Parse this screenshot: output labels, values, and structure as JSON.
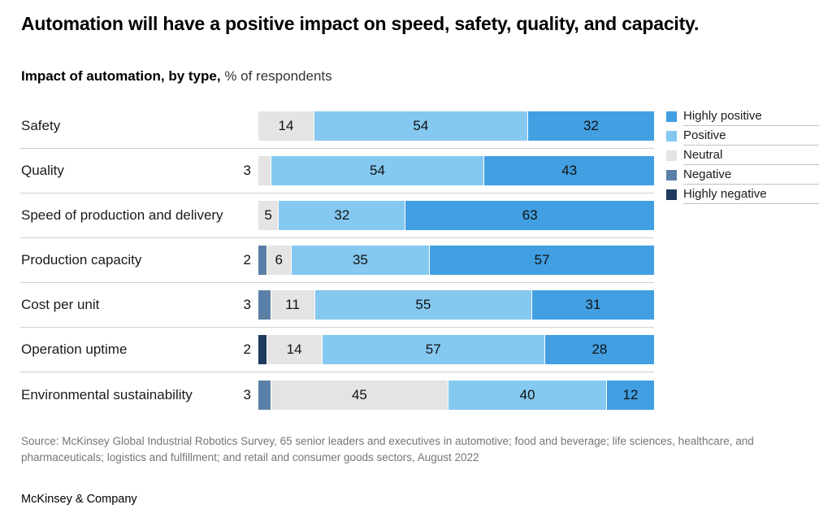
{
  "title": "Automation will have a positive impact on speed, safety, quality, and capacity.",
  "subtitle": {
    "bold": "Impact of automation, by type,",
    "rest": " % of respondents"
  },
  "legend": [
    {
      "key": "highly_positive",
      "label": "Highly positive",
      "color": "#419fe2"
    },
    {
      "key": "positive",
      "label": "Positive",
      "color": "#85c8f0"
    },
    {
      "key": "neutral",
      "label": "Neutral",
      "color": "#e4e4e4"
    },
    {
      "key": "negative",
      "label": "Negative",
      "color": "#5b80a7"
    },
    {
      "key": "highly_negative",
      "label": "Highly negative",
      "color": "#1e3a5e"
    }
  ],
  "chart_data": {
    "type": "bar",
    "orientation": "horizontal",
    "stacked": true,
    "unit": "% of respondents",
    "xlim": [
      0,
      100
    ],
    "grid": false,
    "legend_position": "right",
    "label_outside_threshold": 5,
    "categories": [
      "Safety",
      "Quality",
      "Speed of production and delivery",
      "Production capacity",
      "Cost per unit",
      "Operation uptime",
      "Environmental sustainability"
    ],
    "series": [
      {
        "name": "Highly positive",
        "values": [
          32,
          43,
          63,
          57,
          31,
          28,
          12
        ]
      },
      {
        "name": "Positive",
        "values": [
          54,
          54,
          32,
          35,
          55,
          57,
          40
        ]
      },
      {
        "name": "Neutral",
        "values": [
          14,
          3,
          5,
          6,
          11,
          14,
          45
        ]
      },
      {
        "name": "Negative",
        "values": [
          0,
          0,
          0,
          2,
          3,
          0,
          3
        ]
      },
      {
        "name": "Highly negative",
        "values": [
          0,
          0,
          0,
          0,
          0,
          2,
          0
        ]
      }
    ],
    "rows": [
      {
        "label": "Safety",
        "segments": [
          {
            "key": "neutral",
            "value": 14
          },
          {
            "key": "positive",
            "value": 54
          },
          {
            "key": "highly_positive",
            "value": 32
          }
        ]
      },
      {
        "label": "Quality",
        "segments": [
          {
            "key": "neutral",
            "value": 3
          },
          {
            "key": "positive",
            "value": 54
          },
          {
            "key": "highly_positive",
            "value": 43
          }
        ]
      },
      {
        "label": "Speed of production and delivery",
        "segments": [
          {
            "key": "neutral",
            "value": 5
          },
          {
            "key": "positive",
            "value": 32
          },
          {
            "key": "highly_positive",
            "value": 63
          }
        ]
      },
      {
        "label": "Production capacity",
        "segments": [
          {
            "key": "negative",
            "value": 2
          },
          {
            "key": "neutral",
            "value": 6
          },
          {
            "key": "positive",
            "value": 35
          },
          {
            "key": "highly_positive",
            "value": 57
          }
        ]
      },
      {
        "label": "Cost per unit",
        "segments": [
          {
            "key": "negative",
            "value": 3
          },
          {
            "key": "neutral",
            "value": 11
          },
          {
            "key": "positive",
            "value": 55
          },
          {
            "key": "highly_positive",
            "value": 31
          }
        ]
      },
      {
        "label": "Operation uptime",
        "segments": [
          {
            "key": "highly_negative",
            "value": 2
          },
          {
            "key": "neutral",
            "value": 14
          },
          {
            "key": "positive",
            "value": 57
          },
          {
            "key": "highly_positive",
            "value": 28
          }
        ]
      },
      {
        "label": "Environmental sustainability",
        "segments": [
          {
            "key": "negative",
            "value": 3
          },
          {
            "key": "neutral",
            "value": 45
          },
          {
            "key": "positive",
            "value": 40
          },
          {
            "key": "highly_positive",
            "value": 12
          }
        ]
      }
    ]
  },
  "source": "Source: McKinsey Global Industrial Robotics Survey, 65 senior leaders and executives in automotive; food and beverage; life sciences, healthcare, and pharmaceuticals; logistics and fulfillment; and retail and consumer goods sectors, August 2022",
  "footer": "McKinsey & Company"
}
